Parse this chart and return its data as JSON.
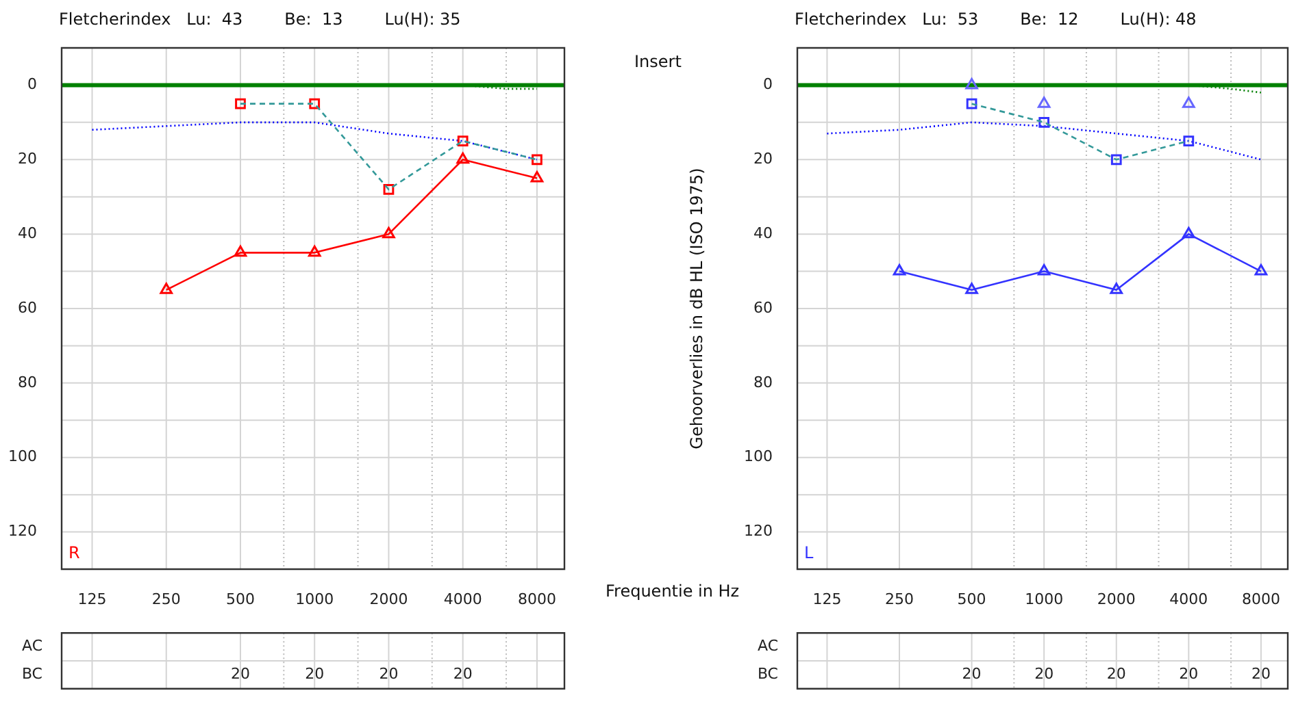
{
  "chart_data": [
    {
      "type": "line",
      "title": "Fletcherindex   Lu:  43        Be:  13        Lu(H): 35",
      "xlabel": "Frequentie in Hz",
      "annotations": [
        "R",
        "Insert"
      ],
      "log": "x",
      "grid": true,
      "x": [
        125,
        250,
        500,
        750,
        1000,
        1500,
        2000,
        3000,
        4000,
        6000,
        8000
      ],
      "xlim": [
        94,
        10340
      ],
      "xticks": [
        125,
        250,
        500,
        {
          "value": 750,
          "label": null
        },
        1000,
        {
          "value": 1500,
          "label": null
        },
        2000,
        {
          "value": 3000,
          "label": null
        },
        4000,
        {
          "value": 6000,
          "label": null
        },
        8000
      ],
      "ylim": [
        130,
        -10
      ],
      "yticks": [
        0,
        {
          "value": 10,
          "label": null
        },
        20,
        {
          "value": 30,
          "label": null
        },
        40,
        {
          "value": 50,
          "label": null
        },
        60,
        {
          "value": 70,
          "label": null
        },
        80,
        {
          "value": 90,
          "label": null
        },
        100,
        {
          "value": 110,
          "label": null
        },
        120
      ],
      "ref_lines": [
        {
          "axis": "y",
          "value": 0,
          "color": "#008000"
        }
      ],
      "series": [
        {
          "type": "line",
          "color": "#ff0000",
          "marker": "triangle",
          "line_style": "solid",
          "values": [
            null,
            55,
            45,
            null,
            45,
            null,
            40,
            null,
            20,
            null,
            25
          ]
        },
        {
          "type": "line",
          "color": "#339999",
          "marker": "none",
          "line_style": "dashed",
          "values": [
            null,
            null,
            5,
            null,
            5,
            null,
            28,
            null,
            15,
            null,
            20
          ]
        },
        {
          "type": "scatter",
          "color": "#ff0000",
          "marker": "square",
          "values": [
            null,
            null,
            5,
            null,
            5,
            null,
            28,
            null,
            15,
            null,
            20
          ]
        },
        {
          "type": "line",
          "color": "#0000ff",
          "marker": "none",
          "line_style": "dotted",
          "values": [
            12,
            11,
            10,
            null,
            10,
            null,
            13,
            null,
            15,
            null,
            20
          ]
        },
        {
          "type": "line",
          "color": "#008000",
          "marker": "none",
          "line_style": "dotted",
          "values": [
            null,
            null,
            null,
            null,
            null,
            null,
            0,
            null,
            0,
            1,
            1
          ]
        }
      ]
    },
    {
      "type": "line",
      "title": "Fletcherindex   Lu:  53        Be:  12        Lu(H): 48",
      "ylabel": "Gehoorverlies in dB HL (ISO 1975)",
      "annotations": [
        "L"
      ],
      "log": "x",
      "grid": true,
      "x": [
        125,
        250,
        500,
        750,
        1000,
        1500,
        2000,
        3000,
        4000,
        6000,
        8000
      ],
      "xlim": [
        94,
        10340
      ],
      "xticks": [
        125,
        250,
        500,
        {
          "value": 750,
          "label": null
        },
        1000,
        {
          "value": 1500,
          "label": null
        },
        2000,
        {
          "value": 3000,
          "label": null
        },
        4000,
        {
          "value": 6000,
          "label": null
        },
        8000
      ],
      "ylim": [
        130,
        -10
      ],
      "yticks": [
        0,
        {
          "value": 10,
          "label": null
        },
        20,
        {
          "value": 30,
          "label": null
        },
        40,
        {
          "value": 50,
          "label": null
        },
        60,
        {
          "value": 70,
          "label": null
        },
        80,
        {
          "value": 90,
          "label": null
        },
        100,
        {
          "value": 110,
          "label": null
        },
        120
      ],
      "ref_lines": [
        {
          "axis": "y",
          "value": 0,
          "color": "#008000"
        }
      ],
      "series": [
        {
          "type": "line",
          "color": "#3333ff",
          "marker": "triangle",
          "line_style": "solid",
          "values": [
            null,
            50,
            55,
            null,
            50,
            null,
            55,
            null,
            40,
            null,
            50
          ]
        },
        {
          "type": "scatter",
          "color": "#6666ff",
          "marker": "triangle",
          "values": [
            null,
            null,
            0,
            null,
            5,
            null,
            null,
            null,
            5,
            null,
            null
          ]
        },
        {
          "type": "line",
          "color": "#339999",
          "marker": "none",
          "line_style": "dashed",
          "values": [
            null,
            null,
            5,
            null,
            10,
            null,
            20,
            null,
            15,
            null,
            null
          ]
        },
        {
          "type": "scatter",
          "color": "#3333ff",
          "marker": "square",
          "values": [
            null,
            null,
            5,
            null,
            10,
            null,
            20,
            null,
            15,
            null,
            null
          ]
        },
        {
          "type": "line",
          "color": "#0000ff",
          "marker": "none",
          "line_style": "dotted",
          "values": [
            13,
            12,
            10,
            null,
            11,
            null,
            13,
            null,
            15,
            null,
            20
          ]
        },
        {
          "type": "line",
          "color": "#008000",
          "marker": "none",
          "line_style": "dotted",
          "values": [
            null,
            null,
            null,
            null,
            null,
            null,
            0,
            null,
            0,
            1,
            2
          ]
        }
      ]
    },
    {
      "type": "heatmap",
      "categories": [
        null,
        null,
        null,
        null,
        null,
        null,
        null
      ],
      "y_categories": [
        "AC",
        "BC"
      ],
      "cells": [
        [
          null,
          null,
          null,
          null,
          null,
          null,
          null
        ],
        [
          null,
          null,
          20,
          20,
          20,
          20,
          null
        ]
      ],
      "data_labels": true
    },
    {
      "type": "heatmap",
      "categories": [
        null,
        null,
        null,
        null,
        null,
        null,
        null
      ],
      "y_categories": [
        "AC",
        "BC"
      ],
      "cells": [
        [
          null,
          null,
          null,
          null,
          null,
          null,
          null
        ],
        [
          null,
          null,
          20,
          20,
          20,
          20,
          20
        ]
      ],
      "data_labels": true
    }
  ]
}
